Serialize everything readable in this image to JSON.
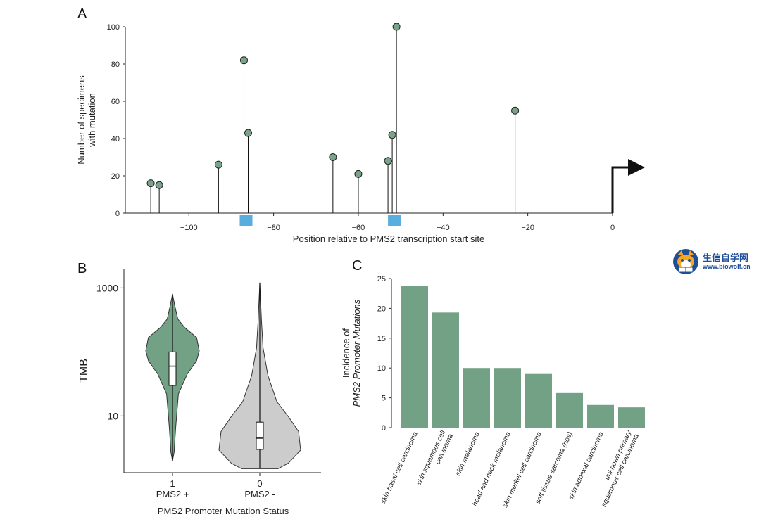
{
  "panels": {
    "a": "A",
    "b": "B",
    "c": "C"
  },
  "watermark": {
    "title": "生信自学网",
    "url": "www.biowolf.cn"
  },
  "chart_data": [
    {
      "type": "lollipop",
      "panel": "A",
      "xlabel": "Position relative to PMS2 transcription start site",
      "ylabel": [
        "Number of specimens",
        "with mutation"
      ],
      "xlim": [
        -115,
        0
      ],
      "ylim": [
        0,
        100
      ],
      "xticks": [
        -100,
        -80,
        -60,
        -40,
        -20,
        0
      ],
      "yticks": [
        0,
        20,
        40,
        60,
        80,
        100
      ],
      "points": [
        {
          "x": -109,
          "y": 16
        },
        {
          "x": -107,
          "y": 15
        },
        {
          "x": -93,
          "y": 26
        },
        {
          "x": -87,
          "y": 82
        },
        {
          "x": -86,
          "y": 43
        },
        {
          "x": -66,
          "y": 30
        },
        {
          "x": -60,
          "y": 21
        },
        {
          "x": -53,
          "y": 28
        },
        {
          "x": -52,
          "y": 42
        },
        {
          "x": -51,
          "y": 100
        },
        {
          "x": -23,
          "y": 55
        }
      ],
      "highlight_regions": [
        [
          -88,
          -85
        ],
        [
          -53,
          -50
        ]
      ],
      "colors": {
        "point": "#7aa38c",
        "region": "#5aaedf"
      }
    },
    {
      "type": "violin",
      "panel": "B",
      "xlabel": "PMS2 Promoter Mutation Status",
      "ylabel": "TMB",
      "yscale": "log",
      "ylim": [
        1.3,
        2000
      ],
      "yticks": [
        10,
        1000
      ],
      "groups": [
        {
          "tick": "1",
          "label": "PMS2 +",
          "min": 2,
          "q1": 30,
          "median": 60,
          "q3": 100,
          "max": 800,
          "color": "#72a185"
        },
        {
          "tick": "0",
          "label": "PMS2 -",
          "min": 1.5,
          "q1": 3,
          "median": 4.5,
          "q3": 8,
          "max": 1200,
          "color": "#cccccc"
        }
      ]
    },
    {
      "type": "bar",
      "panel": "C",
      "ylabel": [
        "Incidence of",
        "PMS2 Promoter Mutations"
      ],
      "ylim": [
        0,
        25
      ],
      "yticks": [
        0,
        5,
        10,
        15,
        20,
        25
      ],
      "categories": [
        [
          "skin basal cell carcinoma"
        ],
        [
          "skin squamous cell",
          "carcinoma"
        ],
        [
          "skin melanoma"
        ],
        [
          "head and neck melanoma"
        ],
        [
          "skin merkel cell carcinoma"
        ],
        [
          "soft tissue sarcoma (nos)"
        ],
        [
          "skin adnexal carcinoma"
        ],
        [
          "unknown primary",
          "squamous cell carcinoma"
        ]
      ],
      "values": [
        23.7,
        19.3,
        10,
        10,
        9,
        5.8,
        3.8,
        3.4
      ],
      "color": "#72a185"
    }
  ]
}
